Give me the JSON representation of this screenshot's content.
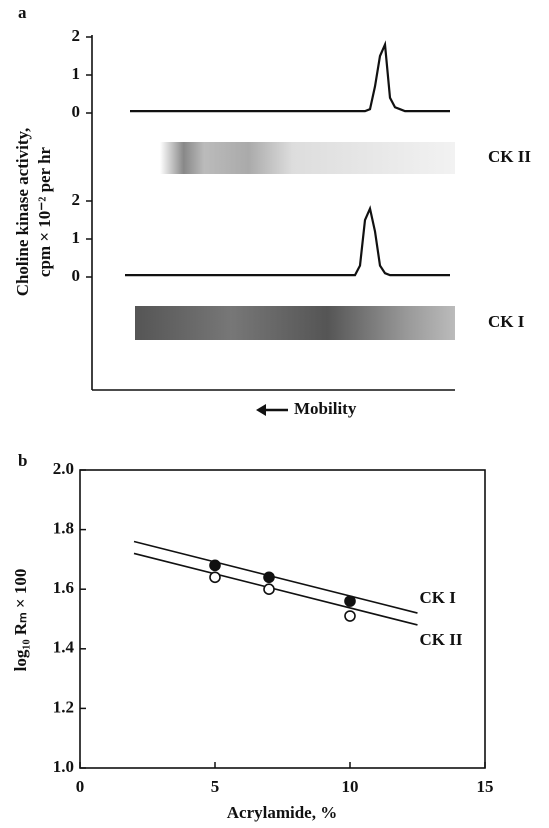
{
  "chart_data": [
    {
      "type": "profile",
      "panel": "a",
      "ylabel": [
        "Choline kinase activity,",
        "cpm × 10⁻² per hr"
      ],
      "xlabel": "Mobility",
      "series": [
        {
          "name": "CK II",
          "color": "#111111",
          "ylim": [
            0,
            2
          ],
          "yticks": [
            0,
            1,
            2
          ],
          "values": [
            0.05,
            0.05,
            0.05,
            0.05,
            0.05,
            0.05,
            0.05,
            0.05,
            0.05,
            0.05,
            0.05,
            0.05,
            0.05,
            0.05,
            0.05,
            0.05,
            0.05,
            0.05,
            0.05,
            0.05,
            0.05,
            0.05,
            0.05,
            0.05,
            0.05,
            0.05,
            0.05,
            0.05,
            0.05,
            0.05,
            0.05,
            0.05,
            0.05,
            0.05,
            0.05,
            0.05,
            0.05,
            0.05,
            0.05,
            0.05,
            0.05,
            0.05,
            0.05,
            0.05,
            0.05,
            0.05,
            0.05,
            0.05,
            0.1,
            0.7,
            1.5,
            1.8,
            0.4,
            0.15,
            0.1,
            0.05,
            0.05,
            0.05,
            0.05,
            0.05,
            0.05,
            0.05,
            0.05,
            0.05,
            0.05
          ]
        },
        {
          "name": "CK I",
          "color": "#111111",
          "ylim": [
            0,
            2
          ],
          "yticks": [
            0,
            1,
            2
          ],
          "values": [
            0.05,
            0.05,
            0.05,
            0.05,
            0.05,
            0.05,
            0.05,
            0.05,
            0.05,
            0.05,
            0.05,
            0.05,
            0.05,
            0.05,
            0.05,
            0.05,
            0.05,
            0.05,
            0.05,
            0.05,
            0.05,
            0.05,
            0.05,
            0.05,
            0.05,
            0.05,
            0.05,
            0.05,
            0.05,
            0.05,
            0.05,
            0.05,
            0.05,
            0.05,
            0.05,
            0.05,
            0.05,
            0.05,
            0.05,
            0.05,
            0.05,
            0.05,
            0.05,
            0.05,
            0.05,
            0.05,
            0.05,
            0.3,
            1.5,
            1.8,
            1.2,
            0.3,
            0.1,
            0.05,
            0.05,
            0.05,
            0.05,
            0.05,
            0.05,
            0.05,
            0.05,
            0.05,
            0.05,
            0.05,
            0.05,
            0.05
          ]
        }
      ]
    },
    {
      "type": "scatter",
      "panel": "b",
      "xlabel": "Acrylamide, %",
      "ylabel": "log₁₀ Rₘ × 100",
      "xlim": [
        0,
        15
      ],
      "xticks": [
        0,
        5,
        10,
        15
      ],
      "ylim": [
        1.0,
        2.0
      ],
      "yticks": [
        {
          "value": 1.0,
          "label": "1.0"
        },
        1.2,
        1.4,
        1.6,
        1.8,
        {
          "value": 2.0,
          "label": "2.0"
        }
      ],
      "series": [
        {
          "name": "CK I",
          "color": "#111111",
          "marker": "filled",
          "x": [
            5,
            7,
            10
          ],
          "values": [
            1.68,
            1.64,
            1.56
          ],
          "fit": {
            "x": [
              2,
              12.5
            ],
            "values": [
              1.76,
              1.52
            ]
          }
        },
        {
          "name": "CK II",
          "color": "#111111",
          "marker": "open",
          "x": [
            5,
            7,
            10
          ],
          "values": [
            1.64,
            1.6,
            1.51
          ],
          "fit": {
            "x": [
              2,
              12.5
            ],
            "values": [
              1.72,
              1.48
            ]
          }
        }
      ]
    }
  ]
}
